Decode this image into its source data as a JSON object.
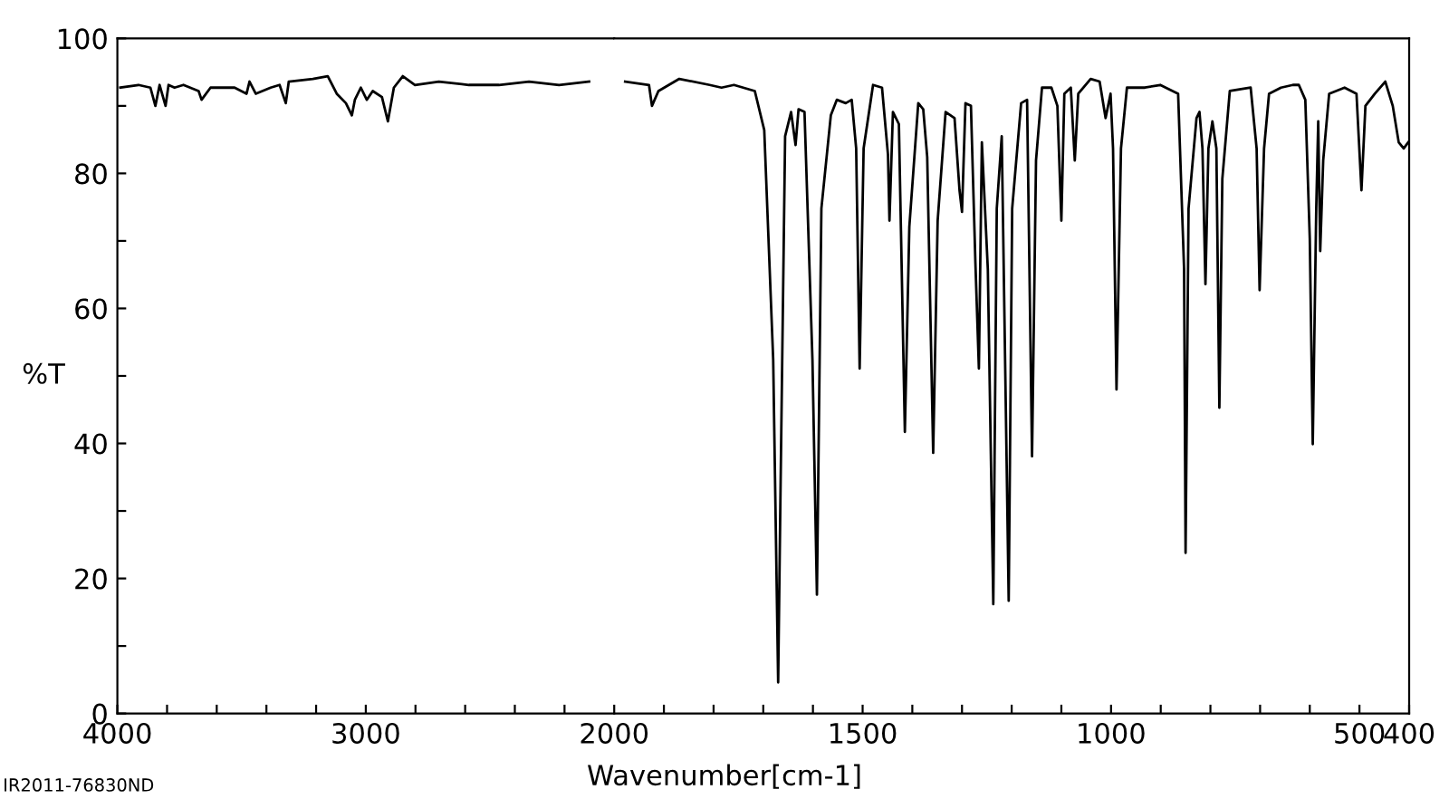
{
  "chart_data": [
    {
      "type": "line",
      "ylabel": "%T",
      "annotations": [
        "IR2011-76830ND"
      ],
      "xlim": [
        4000,
        2000
      ],
      "ylim": [
        0,
        100
      ],
      "xticks": [
        4000,
        {
          "value": 3800,
          "label": null
        },
        {
          "value": 3600,
          "label": null
        },
        {
          "value": 3400,
          "label": null
        },
        {
          "value": 3200,
          "label": null
        },
        3000,
        {
          "value": 2800,
          "label": null
        },
        {
          "value": 2600,
          "label": null
        },
        {
          "value": 2400,
          "label": null
        },
        {
          "value": 2200,
          "label": null
        }
      ],
      "yticks": [
        0,
        {
          "value": 10,
          "label": null
        },
        20,
        {
          "value": 30,
          "label": null
        },
        40,
        {
          "value": 50,
          "label": null
        },
        60,
        {
          "value": 70,
          "label": null
        },
        80,
        {
          "value": 90,
          "label": null
        },
        100
      ],
      "marker": "none",
      "line_style": "solid",
      "series": [
        {
          "color": "#000000",
          "x": [
            3988,
            3915,
            3867,
            3847,
            3830,
            3806,
            3794,
            3770,
            3734,
            3673,
            3661,
            3625,
            3528,
            3480,
            3468,
            3443,
            3383,
            3347,
            3322,
            3310,
            3213,
            3153,
            3117,
            3080,
            3056,
            3044,
            3020,
            2996,
            2972,
            2935,
            2911,
            2887,
            2851,
            2802,
            2706,
            2585,
            2464,
            2343,
            2222,
            2101
          ],
          "values": [
            92.7,
            93.1,
            92.7,
            90.0,
            93.1,
            90.0,
            93.1,
            92.7,
            93.1,
            92.2,
            90.9,
            92.7,
            92.7,
            91.8,
            93.6,
            91.8,
            92.7,
            93.1,
            90.4,
            93.6,
            94.0,
            94.4,
            91.8,
            90.4,
            88.6,
            90.9,
            92.7,
            90.9,
            92.2,
            91.3,
            87.7,
            92.7,
            94.4,
            93.1,
            93.6,
            93.1,
            93.1,
            93.6,
            93.1,
            93.6
          ]
        }
      ]
    },
    {
      "type": "line",
      "xlabel": "Wavenumber[cm-1]",
      "tick_labels": "x",
      "xlim": [
        2000,
        400
      ],
      "ylim": [
        0,
        100
      ],
      "xticks": [
        2000,
        {
          "value": 1900,
          "label": null
        },
        {
          "value": 1800,
          "label": null
        },
        {
          "value": 1700,
          "label": null
        },
        {
          "value": 1600,
          "label": null
        },
        1500,
        {
          "value": 1400,
          "label": null
        },
        {
          "value": 1300,
          "label": null
        },
        {
          "value": 1200,
          "label": null
        },
        {
          "value": 1100,
          "label": null
        },
        1000,
        {
          "value": 900,
          "label": null
        },
        {
          "value": 800,
          "label": null
        },
        {
          "value": 700,
          "label": null
        },
        {
          "value": 600,
          "label": null
        },
        500,
        400
      ],
      "marker": "none",
      "line_style": "solid",
      "series": [
        {
          "color": "#000000",
          "x": [
            1978,
            1930,
            1924,
            1911,
            1869,
            1808,
            1784,
            1759,
            1717,
            1698,
            1680,
            1670,
            1665,
            1656,
            1644,
            1635,
            1629,
            1617,
            1601,
            1592,
            1583,
            1564,
            1552,
            1534,
            1522,
            1513,
            1506,
            1498,
            1479,
            1461,
            1449,
            1446,
            1439,
            1427,
            1415,
            1406,
            1388,
            1378,
            1370,
            1358,
            1349,
            1333,
            1315,
            1305,
            1300,
            1293,
            1282,
            1273,
            1266,
            1260,
            1248,
            1237,
            1230,
            1220,
            1206,
            1199,
            1181,
            1169,
            1159,
            1151,
            1139,
            1120,
            1108,
            1100,
            1094,
            1081,
            1073,
            1066,
            1041,
            1023,
            1011,
            1001,
            996,
            989,
            980,
            968,
            932,
            901,
            865,
            853,
            850,
            844,
            828,
            822,
            816,
            810,
            804,
            796,
            788,
            782,
            776,
            761,
            719,
            707,
            701,
            692,
            682,
            658,
            634,
            622,
            609,
            600,
            594,
            587,
            583,
            579,
            573,
            561,
            530,
            506,
            496,
            488,
            469,
            448,
            433,
            421,
            411,
            402
          ],
          "values": [
            93.6,
            93.1,
            90.0,
            92.2,
            94.0,
            93.1,
            92.7,
            93.1,
            92.2,
            86.4,
            52.4,
            4.6,
            34.5,
            85.5,
            89.1,
            84.2,
            89.5,
            89.1,
            52.4,
            17.6,
            74.8,
            88.6,
            90.9,
            90.4,
            90.9,
            83.7,
            51.1,
            83.7,
            93.1,
            92.7,
            82.8,
            73.0,
            89.1,
            87.3,
            41.7,
            72.1,
            90.4,
            89.5,
            82.4,
            38.6,
            73.0,
            89.1,
            88.2,
            77.5,
            74.3,
            90.4,
            90.0,
            66.7,
            51.1,
            84.6,
            65.8,
            16.2,
            74.8,
            85.5,
            16.7,
            74.8,
            90.4,
            90.9,
            38.1,
            81.9,
            92.7,
            92.7,
            90.0,
            73.0,
            91.8,
            92.7,
            81.9,
            91.8,
            94.0,
            93.6,
            88.2,
            91.8,
            83.7,
            48.0,
            83.7,
            92.7,
            92.7,
            93.1,
            91.8,
            65.8,
            23.8,
            74.8,
            88.2,
            89.1,
            83.7,
            63.6,
            83.7,
            87.7,
            83.7,
            45.3,
            79.2,
            92.2,
            92.7,
            83.7,
            62.7,
            83.7,
            91.8,
            92.7,
            93.1,
            93.1,
            90.9,
            70.3,
            39.9,
            74.8,
            87.7,
            68.5,
            81.9,
            91.8,
            92.7,
            91.8,
            77.5,
            90.0,
            91.8,
            93.6,
            90.0,
            84.6,
            83.7,
            84.6
          ]
        }
      ]
    }
  ]
}
